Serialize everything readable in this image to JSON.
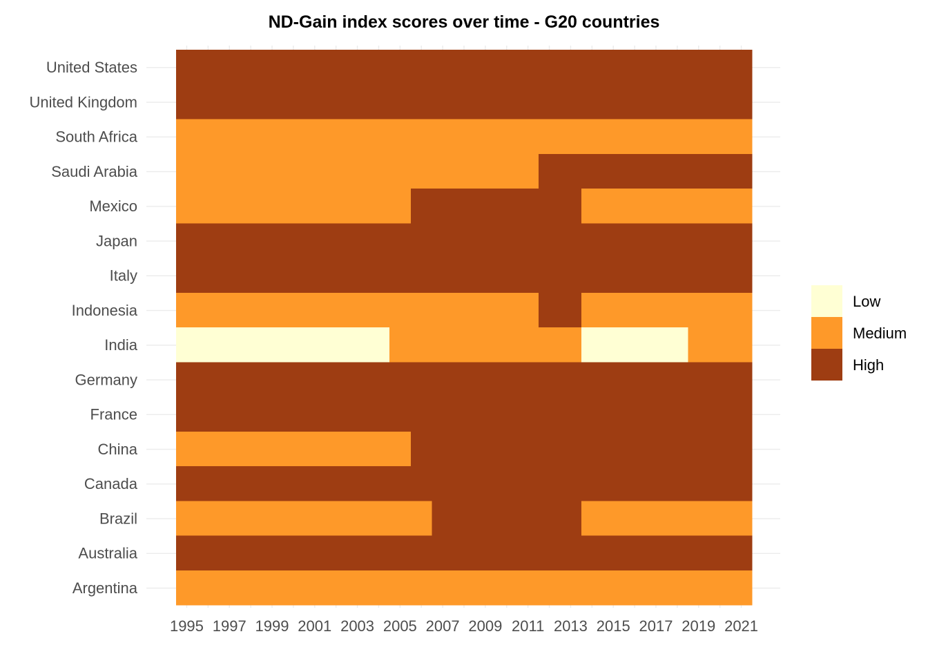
{
  "chart_data": {
    "type": "heatmap",
    "title": "ND-Gain index scores over time - G20 countries",
    "xlabel": "",
    "ylabel": "",
    "x_range": [
      1995,
      2021
    ],
    "x_ticks": [
      "1995",
      "1997",
      "1999",
      "2001",
      "2003",
      "2005",
      "2007",
      "2009",
      "2011",
      "2013",
      "2015",
      "2017",
      "2019",
      "2021"
    ],
    "categories": [
      "United States",
      "United Kingdom",
      "South Africa",
      "Saudi Arabia",
      "Mexico",
      "Japan",
      "Italy",
      "Indonesia",
      "India",
      "Germany",
      "France",
      "China",
      "Canada",
      "Brazil",
      "Australia",
      "Argentina"
    ],
    "levels": [
      "Low",
      "Medium",
      "High"
    ],
    "colors": {
      "Low": "#ffffd4",
      "Medium": "#fe9929",
      "High": "#9e3d12"
    },
    "legend_position": "right",
    "grid": true,
    "series": [
      {
        "country": "United States",
        "segments": [
          {
            "from": 1995,
            "to": 2021,
            "level": "High"
          }
        ]
      },
      {
        "country": "United Kingdom",
        "segments": [
          {
            "from": 1995,
            "to": 2021,
            "level": "High"
          }
        ]
      },
      {
        "country": "South Africa",
        "segments": [
          {
            "from": 1995,
            "to": 2021,
            "level": "Medium"
          }
        ]
      },
      {
        "country": "Saudi Arabia",
        "segments": [
          {
            "from": 1995,
            "to": 2011,
            "level": "Medium"
          },
          {
            "from": 2012,
            "to": 2021,
            "level": "High"
          }
        ]
      },
      {
        "country": "Mexico",
        "segments": [
          {
            "from": 1995,
            "to": 2005,
            "level": "Medium"
          },
          {
            "from": 2006,
            "to": 2013,
            "level": "High"
          },
          {
            "from": 2014,
            "to": 2021,
            "level": "Medium"
          }
        ]
      },
      {
        "country": "Japan",
        "segments": [
          {
            "from": 1995,
            "to": 2021,
            "level": "High"
          }
        ]
      },
      {
        "country": "Italy",
        "segments": [
          {
            "from": 1995,
            "to": 2021,
            "level": "High"
          }
        ]
      },
      {
        "country": "Indonesia",
        "segments": [
          {
            "from": 1995,
            "to": 2011,
            "level": "Medium"
          },
          {
            "from": 2012,
            "to": 2013,
            "level": "High"
          },
          {
            "from": 2014,
            "to": 2021,
            "level": "Medium"
          }
        ]
      },
      {
        "country": "India",
        "segments": [
          {
            "from": 1995,
            "to": 2004,
            "level": "Low"
          },
          {
            "from": 2005,
            "to": 2013,
            "level": "Medium"
          },
          {
            "from": 2014,
            "to": 2018,
            "level": "Low"
          },
          {
            "from": 2019,
            "to": 2021,
            "level": "Medium"
          }
        ]
      },
      {
        "country": "Germany",
        "segments": [
          {
            "from": 1995,
            "to": 2021,
            "level": "High"
          }
        ]
      },
      {
        "country": "France",
        "segments": [
          {
            "from": 1995,
            "to": 2021,
            "level": "High"
          }
        ]
      },
      {
        "country": "China",
        "segments": [
          {
            "from": 1995,
            "to": 2005,
            "level": "Medium"
          },
          {
            "from": 2006,
            "to": 2021,
            "level": "High"
          }
        ]
      },
      {
        "country": "Canada",
        "segments": [
          {
            "from": 1995,
            "to": 2021,
            "level": "High"
          }
        ]
      },
      {
        "country": "Brazil",
        "segments": [
          {
            "from": 1995,
            "to": 2006,
            "level": "Medium"
          },
          {
            "from": 2007,
            "to": 2013,
            "level": "High"
          },
          {
            "from": 2014,
            "to": 2021,
            "level": "Medium"
          }
        ]
      },
      {
        "country": "Australia",
        "segments": [
          {
            "from": 1995,
            "to": 2021,
            "level": "High"
          }
        ]
      },
      {
        "country": "Argentina",
        "segments": [
          {
            "from": 1995,
            "to": 2021,
            "level": "Medium"
          }
        ]
      }
    ]
  }
}
